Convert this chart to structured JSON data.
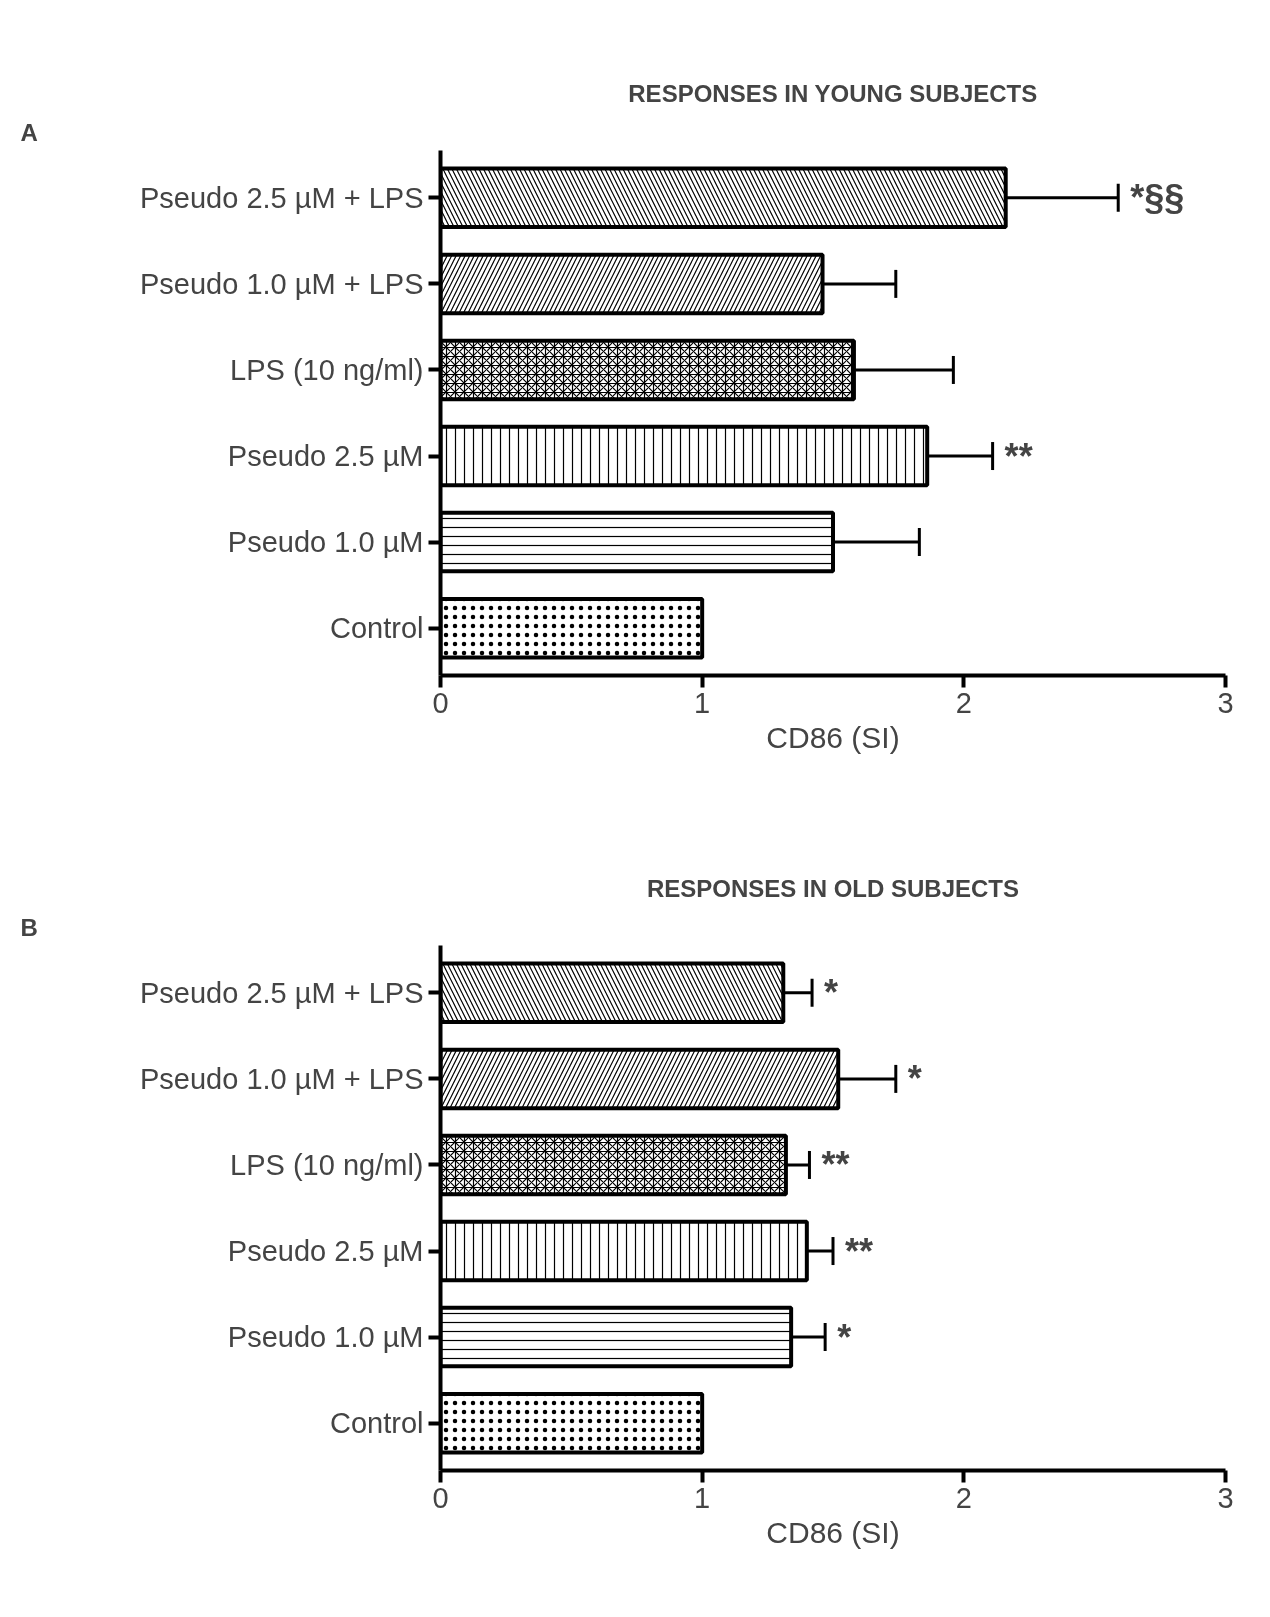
{
  "chart_data": [
    {
      "type": "bar",
      "orientation": "horizontal",
      "title": "RESPONSES IN YOUNG SUBJECTS",
      "xlabel": "CD86 (SI)",
      "categories": [
        "Pseudo 2.5 µM + LPS",
        "Pseudo 1.0 µM + LPS",
        "LPS (10 ng/ml)",
        "Pseudo 2.5 µM",
        "Pseudo 1.0 µM",
        "Control"
      ],
      "values": [
        2.16,
        1.46,
        1.58,
        1.86,
        1.5,
        1.0
      ],
      "errors": [
        0.43,
        0.28,
        0.38,
        0.25,
        0.33,
        null
      ],
      "colors": [
        "#ffffff",
        "#ffffff",
        "#ffffff",
        "#ffffff",
        "#ffffff",
        "#ffffff"
      ],
      "xlim": [
        0,
        3
      ],
      "xticks": [
        0,
        1,
        2,
        3
      ],
      "grid": false,
      "annotations": [
        "A",
        {
          "text": "*§§",
          "x": 2.59,
          "y": "Pseudo 2.5 µM + LPS"
        },
        {
          "text": "**",
          "x": 2.11,
          "y": "Pseudo 2.5 µM"
        }
      ]
    },
    {
      "type": "bar",
      "orientation": "horizontal",
      "title": "RESPONSES IN OLD SUBJECTS",
      "xlabel": "CD86 (SI)",
      "categories": [
        "Pseudo 2.5 µM + LPS",
        "Pseudo 1.0 µM + LPS",
        "LPS (10 ng/ml)",
        "Pseudo 2.5 µM",
        "Pseudo 1.0 µM",
        "Control"
      ],
      "values": [
        1.31,
        1.52,
        1.32,
        1.4,
        1.34,
        1.0
      ],
      "errors": [
        0.11,
        0.22,
        0.09,
        0.1,
        0.13,
        null
      ],
      "colors": [
        "#ffffff",
        "#ffffff",
        "#ffffff",
        "#ffffff",
        "#ffffff",
        "#ffffff"
      ],
      "xlim": [
        0,
        3
      ],
      "xticks": [
        0,
        1,
        2,
        3
      ],
      "grid": false,
      "annotations": [
        "B",
        {
          "text": "*",
          "x": 1.42,
          "y": "Pseudo 2.5 µM + LPS"
        },
        {
          "text": "*",
          "x": 1.74,
          "y": "Pseudo 1.0 µM + LPS"
        },
        {
          "text": "**",
          "x": 1.41,
          "y": "LPS (10 ng/ml)"
        },
        {
          "text": "**",
          "x": 1.5,
          "y": "Pseudo 2.5 µM"
        },
        {
          "text": "*",
          "x": 1.47,
          "y": "Pseudo 1.0 µM"
        }
      ]
    }
  ]
}
